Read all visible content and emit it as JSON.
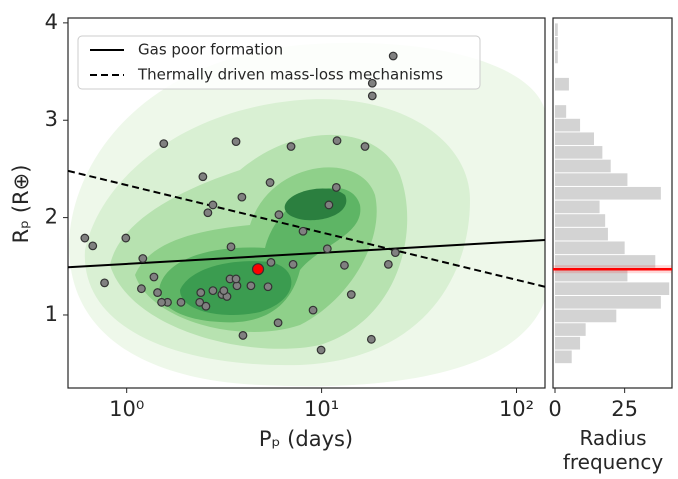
{
  "chart_data": [
    {
      "type": "scatter",
      "xlabel": "Pₚ (days)",
      "ylabel": "Rₚ (R⊕)",
      "log_x": true,
      "xlim": [
        0.5,
        140
      ],
      "ylim": [
        0.25,
        4.05
      ],
      "xticks": [
        {
          "value": 1,
          "label": "10⁰"
        },
        {
          "value": 10,
          "label": "10¹"
        },
        {
          "value": 100,
          "label": "10²"
        }
      ],
      "yticks": [
        1,
        2,
        3,
        4
      ],
      "legend": "upper left",
      "lines": [
        {
          "name": "Gas poor formation",
          "style": "solid",
          "color": "#000000",
          "x": [
            0.5,
            140
          ],
          "values": [
            1.49,
            1.77
          ]
        },
        {
          "name": "Thermally driven mass-loss mechanisms",
          "style": "dashed",
          "color": "#000000",
          "x": [
            0.5,
            140
          ],
          "values": [
            2.48,
            1.29
          ]
        }
      ],
      "series": [
        {
          "color": "#808080",
          "x": [
            23.3,
            18.2,
            18.2,
            1.55,
            3.64,
            6.97,
            12.0,
            16.7,
            2.46,
            5.44,
            11.9,
            2.77,
            3.9,
            2.61,
            6.04,
            10.9,
            0.61,
            0.67,
            0.99,
            8.03,
            3.43,
            10.7,
            23.9,
            1.21,
            0.77,
            1.19,
            1.38,
            1.44,
            1.62,
            1.51,
            1.9,
            2.37,
            2.55,
            2.4,
            2.77,
            3.08,
            3.27,
            3.68,
            3.39,
            3.15,
            4.34,
            3.64,
            5.5,
            5.31,
            7.14,
            13.1,
            22.0,
            14.2,
            5.98,
            9.04,
            3.95,
            9.94,
            18.0
          ],
          "values": [
            3.66,
            3.25,
            3.38,
            2.76,
            2.78,
            2.73,
            2.79,
            2.73,
            2.42,
            2.36,
            2.31,
            2.13,
            2.21,
            2.05,
            2.03,
            2.13,
            1.79,
            1.71,
            1.79,
            1.86,
            1.7,
            1.68,
            1.64,
            1.58,
            1.33,
            1.27,
            1.39,
            1.23,
            1.13,
            1.13,
            1.13,
            1.13,
            1.09,
            1.23,
            1.25,
            1.21,
            1.19,
            1.3,
            1.37,
            1.25,
            1.3,
            1.37,
            1.54,
            1.29,
            1.52,
            1.51,
            1.52,
            1.21,
            0.92,
            1.05,
            0.79,
            0.64,
            0.75
          ]
        },
        {
          "color": "#ff0000",
          "x": [
            4.72
          ],
          "values": [
            1.47
          ]
        }
      ]
    },
    {
      "type": "histogram",
      "orientation": "horizontal",
      "xlabel": "Radius frequency",
      "color": "#d3d3d3",
      "xlim": [
        0,
        42
      ],
      "xticks": [
        0,
        25
      ],
      "ylim": [
        0.25,
        4.05
      ],
      "bins": [
        0.5,
        0.64,
        0.78,
        0.92,
        1.06,
        1.2,
        1.34,
        1.48,
        1.62,
        1.76,
        1.9,
        2.04,
        2.18,
        2.32,
        2.46,
        2.6,
        2.74,
        2.88,
        3.02,
        3.16,
        3.3,
        3.44,
        3.58,
        3.72,
        3.86,
        4.0
      ],
      "counts": [
        6,
        9,
        11,
        22,
        38,
        41,
        26,
        36,
        25,
        19,
        18,
        16,
        38,
        26,
        20,
        17,
        14,
        9,
        4,
        0,
        5,
        0,
        1,
        1,
        1
      ],
      "hline": {
        "value": 1.47,
        "color": "#ff0000"
      }
    }
  ]
}
